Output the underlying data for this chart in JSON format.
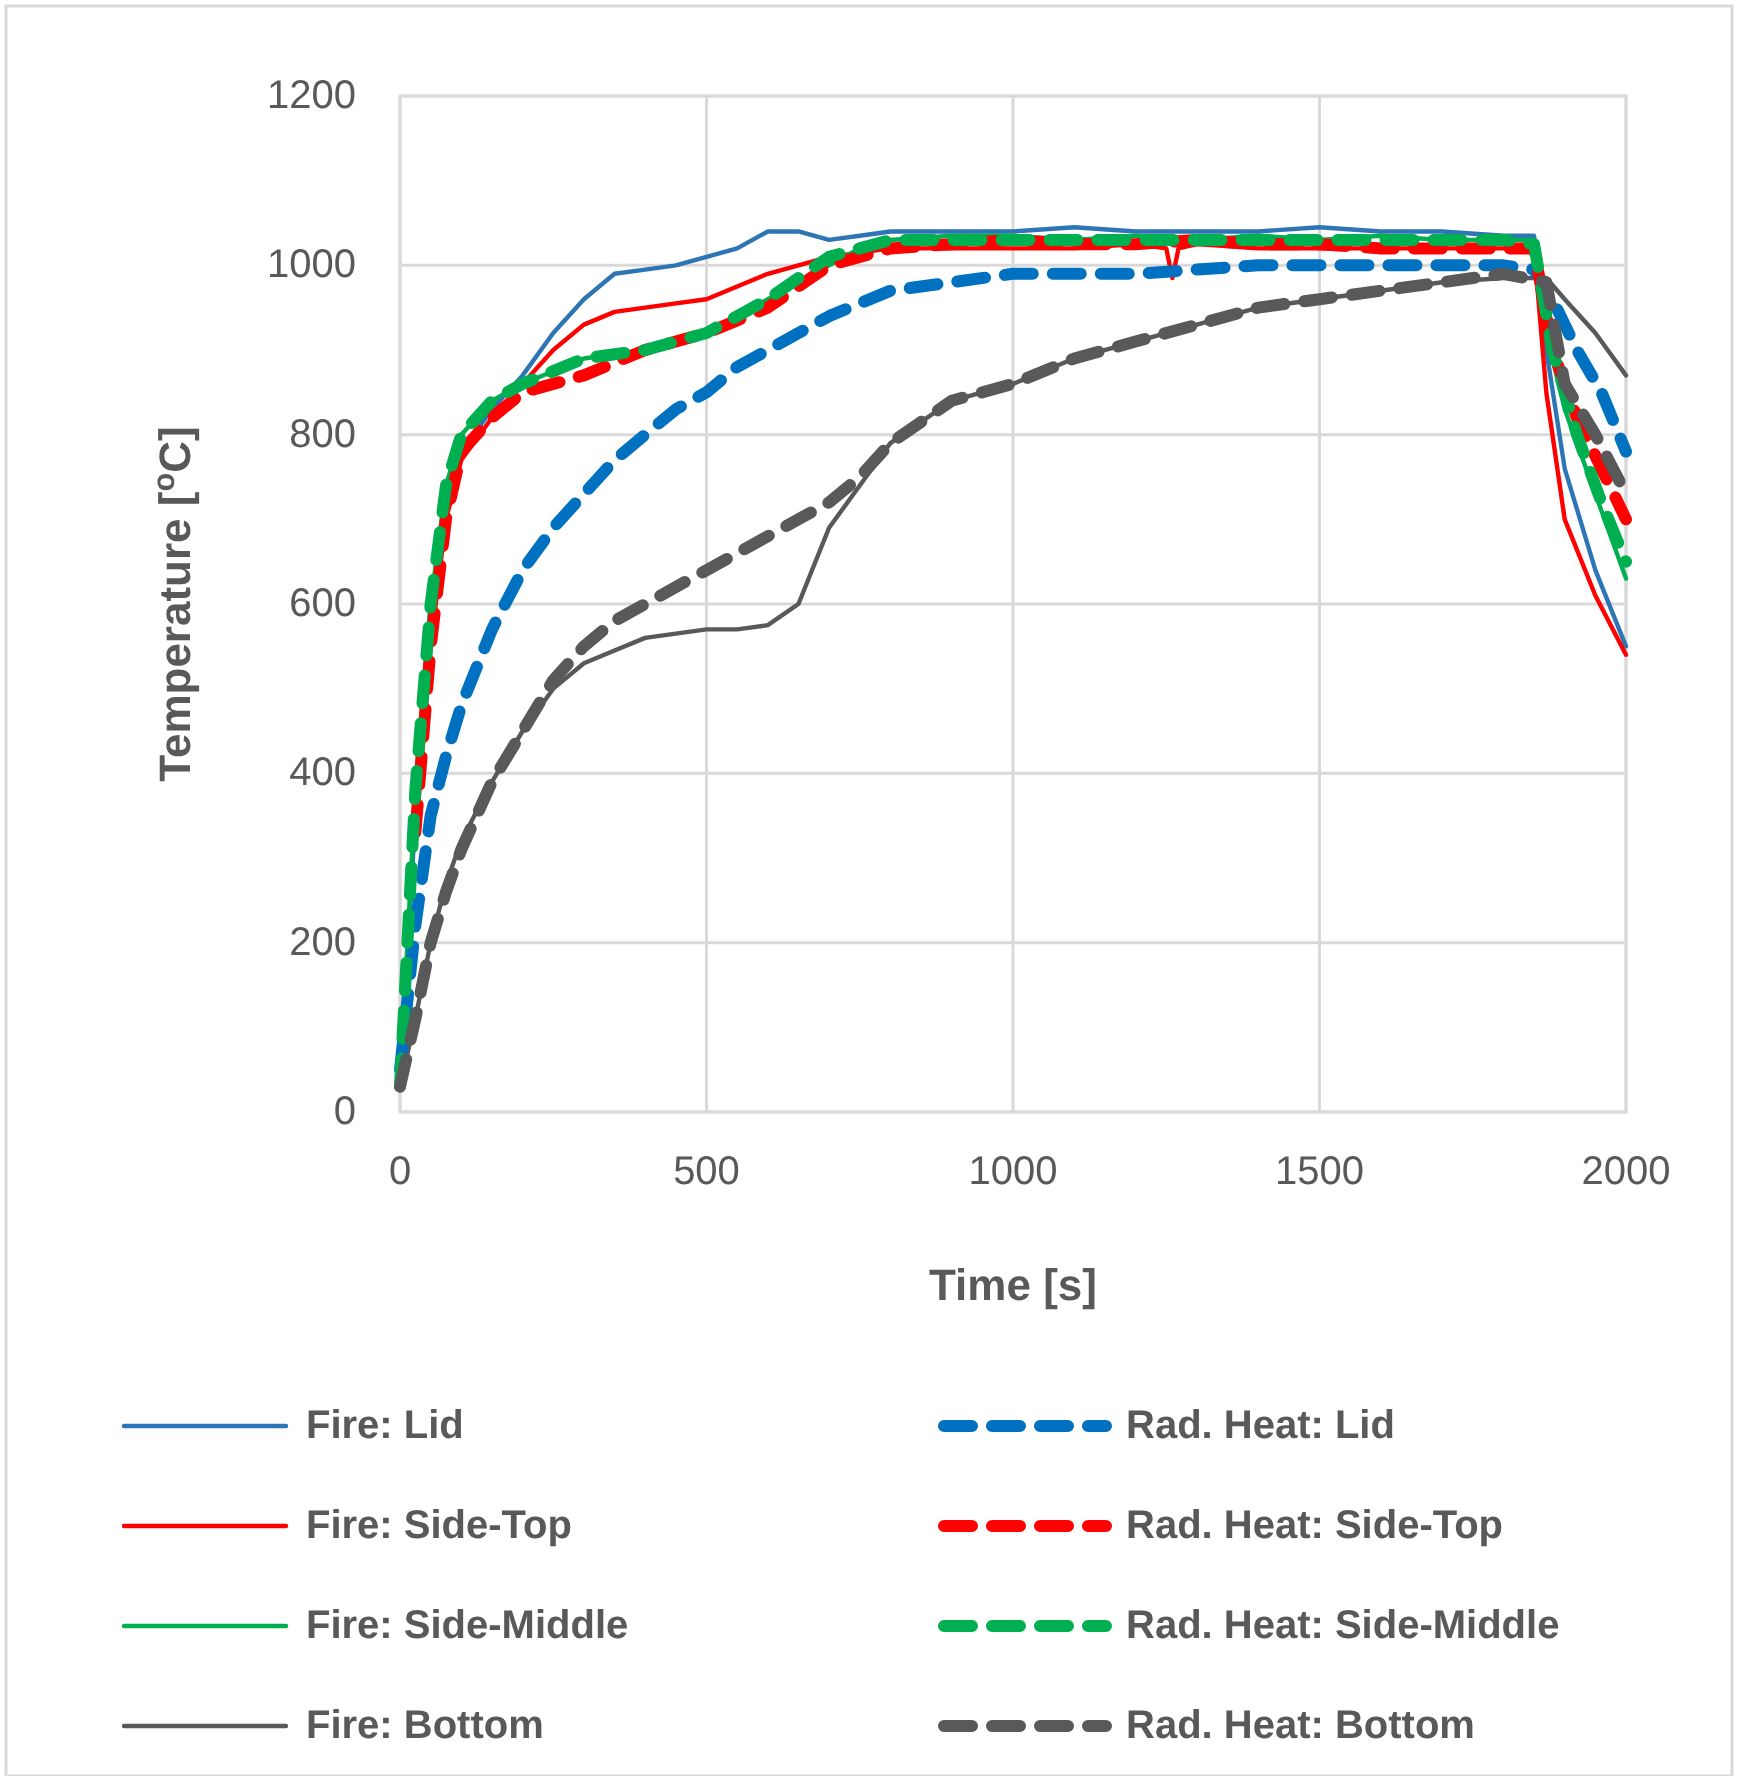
{
  "chart_data": {
    "type": "line",
    "xlabel": "Time [s]",
    "ylabel": "Temperature [$^{o}$C]",
    "xlim": [
      0,
      2000
    ],
    "ylim": [
      0,
      1200
    ],
    "xticks": [
      0,
      500,
      1000,
      1500,
      2000
    ],
    "yticks": [
      0,
      200,
      400,
      600,
      800,
      1000,
      1200
    ],
    "grid": true,
    "legend": "bottom",
    "marker": "none",
    "series": [
      {
        "name": "Fire: Lid",
        "color": "#2e75b6",
        "line_style": "solid",
        "x": [
          0,
          25,
          50,
          75,
          100,
          150,
          200,
          250,
          300,
          350,
          400,
          450,
          500,
          550,
          600,
          650,
          700,
          750,
          800,
          900,
          1000,
          1100,
          1200,
          1300,
          1400,
          1500,
          1600,
          1700,
          1800,
          1850,
          1870,
          1900,
          1950,
          2000
        ],
        "values": [
          30,
          350,
          600,
          720,
          780,
          830,
          870,
          920,
          960,
          990,
          995,
          1000,
          1010,
          1020,
          1040,
          1040,
          1030,
          1035,
          1040,
          1040,
          1040,
          1045,
          1040,
          1040,
          1040,
          1045,
          1040,
          1040,
          1035,
          1035,
          900,
          760,
          640,
          550
        ]
      },
      {
        "name": "Fire: Side-Top",
        "color": "#ff0000",
        "line_style": "solid",
        "x": [
          25,
          50,
          75,
          100,
          150,
          200,
          250,
          300,
          350,
          400,
          450,
          500,
          550,
          600,
          650,
          700,
          750,
          800,
          900,
          1000,
          1100,
          1200,
          1250,
          1260,
          1270,
          1300,
          1400,
          1500,
          1600,
          1700,
          1800,
          1850,
          1870,
          1900,
          1950,
          2000
        ],
        "values": [
          320,
          550,
          700,
          770,
          820,
          860,
          900,
          930,
          945,
          950,
          955,
          960,
          975,
          990,
          1000,
          1010,
          1015,
          1020,
          1020,
          1020,
          1020,
          1025,
          1020,
          985,
          1020,
          1025,
          1020,
          1020,
          1020,
          1020,
          1020,
          1020,
          850,
          700,
          610,
          540
        ]
      },
      {
        "name": "Fire: Side-Middle",
        "color": "#00b050",
        "line_style": "solid",
        "x": [
          0,
          25,
          50,
          75,
          100,
          150,
          200,
          250,
          300,
          350,
          400,
          450,
          500,
          550,
          600,
          650,
          700,
          750,
          800,
          900,
          1000,
          1100,
          1200,
          1300,
          1400,
          1500,
          1600,
          1700,
          1800,
          1850,
          1870,
          1900,
          1950,
          2000
        ],
        "values": [
          30,
          380,
          600,
          740,
          800,
          840,
          860,
          875,
          890,
          895,
          900,
          910,
          920,
          940,
          960,
          980,
          1000,
          1020,
          1030,
          1035,
          1035,
          1030,
          1035,
          1030,
          1035,
          1030,
          1035,
          1030,
          1030,
          1030,
          920,
          830,
          730,
          630
        ]
      },
      {
        "name": "Fire: Bottom",
        "color": "#595959",
        "line_style": "solid",
        "x": [
          0,
          25,
          50,
          75,
          100,
          150,
          200,
          250,
          300,
          350,
          400,
          450,
          500,
          550,
          600,
          650,
          700,
          750,
          800,
          900,
          1000,
          1100,
          1200,
          1300,
          1400,
          1500,
          1600,
          1700,
          1800,
          1870,
          1900,
          1950,
          2000
        ],
        "values": [
          30,
          110,
          200,
          270,
          320,
          390,
          450,
          500,
          530,
          545,
          560,
          565,
          570,
          570,
          575,
          600,
          690,
          740,
          790,
          840,
          860,
          890,
          910,
          930,
          950,
          960,
          970,
          980,
          985,
          985,
          960,
          920,
          870
        ]
      },
      {
        "name": "Rad. Heat: Lid",
        "color": "#0070c0",
        "line_style": "dashed",
        "x": [
          0,
          25,
          50,
          75,
          100,
          150,
          200,
          250,
          300,
          350,
          400,
          450,
          500,
          550,
          600,
          650,
          700,
          750,
          800,
          900,
          1000,
          1100,
          1200,
          1300,
          1400,
          1500,
          1600,
          1700,
          1800,
          1850,
          1880,
          1920,
          1960,
          2000
        ],
        "values": [
          50,
          220,
          350,
          420,
          480,
          570,
          640,
          690,
          730,
          770,
          800,
          830,
          850,
          880,
          900,
          920,
          940,
          955,
          970,
          980,
          990,
          990,
          990,
          995,
          1000,
          1000,
          1000,
          1000,
          1000,
          995,
          960,
          900,
          850,
          780
        ]
      },
      {
        "name": "Rad. Heat: Side-Top",
        "color": "#ff0000",
        "line_style": "dashed",
        "x": [
          25,
          50,
          75,
          100,
          150,
          200,
          250,
          300,
          350,
          400,
          450,
          500,
          550,
          600,
          650,
          700,
          750,
          800,
          900,
          1000,
          1100,
          1200,
          1300,
          1400,
          1500,
          1600,
          1700,
          1800,
          1850,
          1880,
          1920,
          1960,
          2000
        ],
        "values": [
          330,
          550,
          700,
          780,
          820,
          850,
          860,
          870,
          885,
          900,
          910,
          920,
          935,
          950,
          975,
          1000,
          1010,
          1020,
          1025,
          1030,
          1025,
          1025,
          1030,
          1025,
          1025,
          1020,
          1020,
          1020,
          1020,
          900,
          820,
          760,
          700
        ]
      },
      {
        "name": "Rad. Heat: Side-Middle",
        "color": "#00b050",
        "line_style": "dashed",
        "x": [
          0,
          25,
          50,
          75,
          100,
          150,
          200,
          250,
          300,
          350,
          400,
          450,
          500,
          550,
          600,
          650,
          700,
          750,
          800,
          900,
          1000,
          1100,
          1200,
          1300,
          1400,
          1500,
          1600,
          1700,
          1800,
          1850,
          1880,
          1920,
          1960,
          2000
        ],
        "values": [
          30,
          380,
          600,
          740,
          800,
          840,
          860,
          875,
          890,
          895,
          900,
          910,
          920,
          940,
          960,
          985,
          1010,
          1020,
          1030,
          1030,
          1030,
          1030,
          1030,
          1030,
          1030,
          1030,
          1030,
          1030,
          1030,
          1025,
          900,
          800,
          720,
          650
        ]
      },
      {
        "name": "Rad. Heat: Bottom",
        "color": "#595959",
        "line_style": "dashed",
        "x": [
          0,
          25,
          50,
          75,
          100,
          150,
          200,
          250,
          300,
          350,
          400,
          450,
          500,
          550,
          600,
          650,
          700,
          750,
          800,
          900,
          1000,
          1100,
          1200,
          1300,
          1400,
          1500,
          1600,
          1700,
          1800,
          1870,
          1900,
          1950,
          2000
        ],
        "values": [
          30,
          110,
          200,
          260,
          310,
          390,
          450,
          510,
          550,
          580,
          600,
          620,
          640,
          660,
          680,
          700,
          720,
          750,
          790,
          840,
          860,
          890,
          910,
          930,
          950,
          960,
          970,
          980,
          990,
          980,
          860,
          800,
          730
        ]
      }
    ]
  }
}
